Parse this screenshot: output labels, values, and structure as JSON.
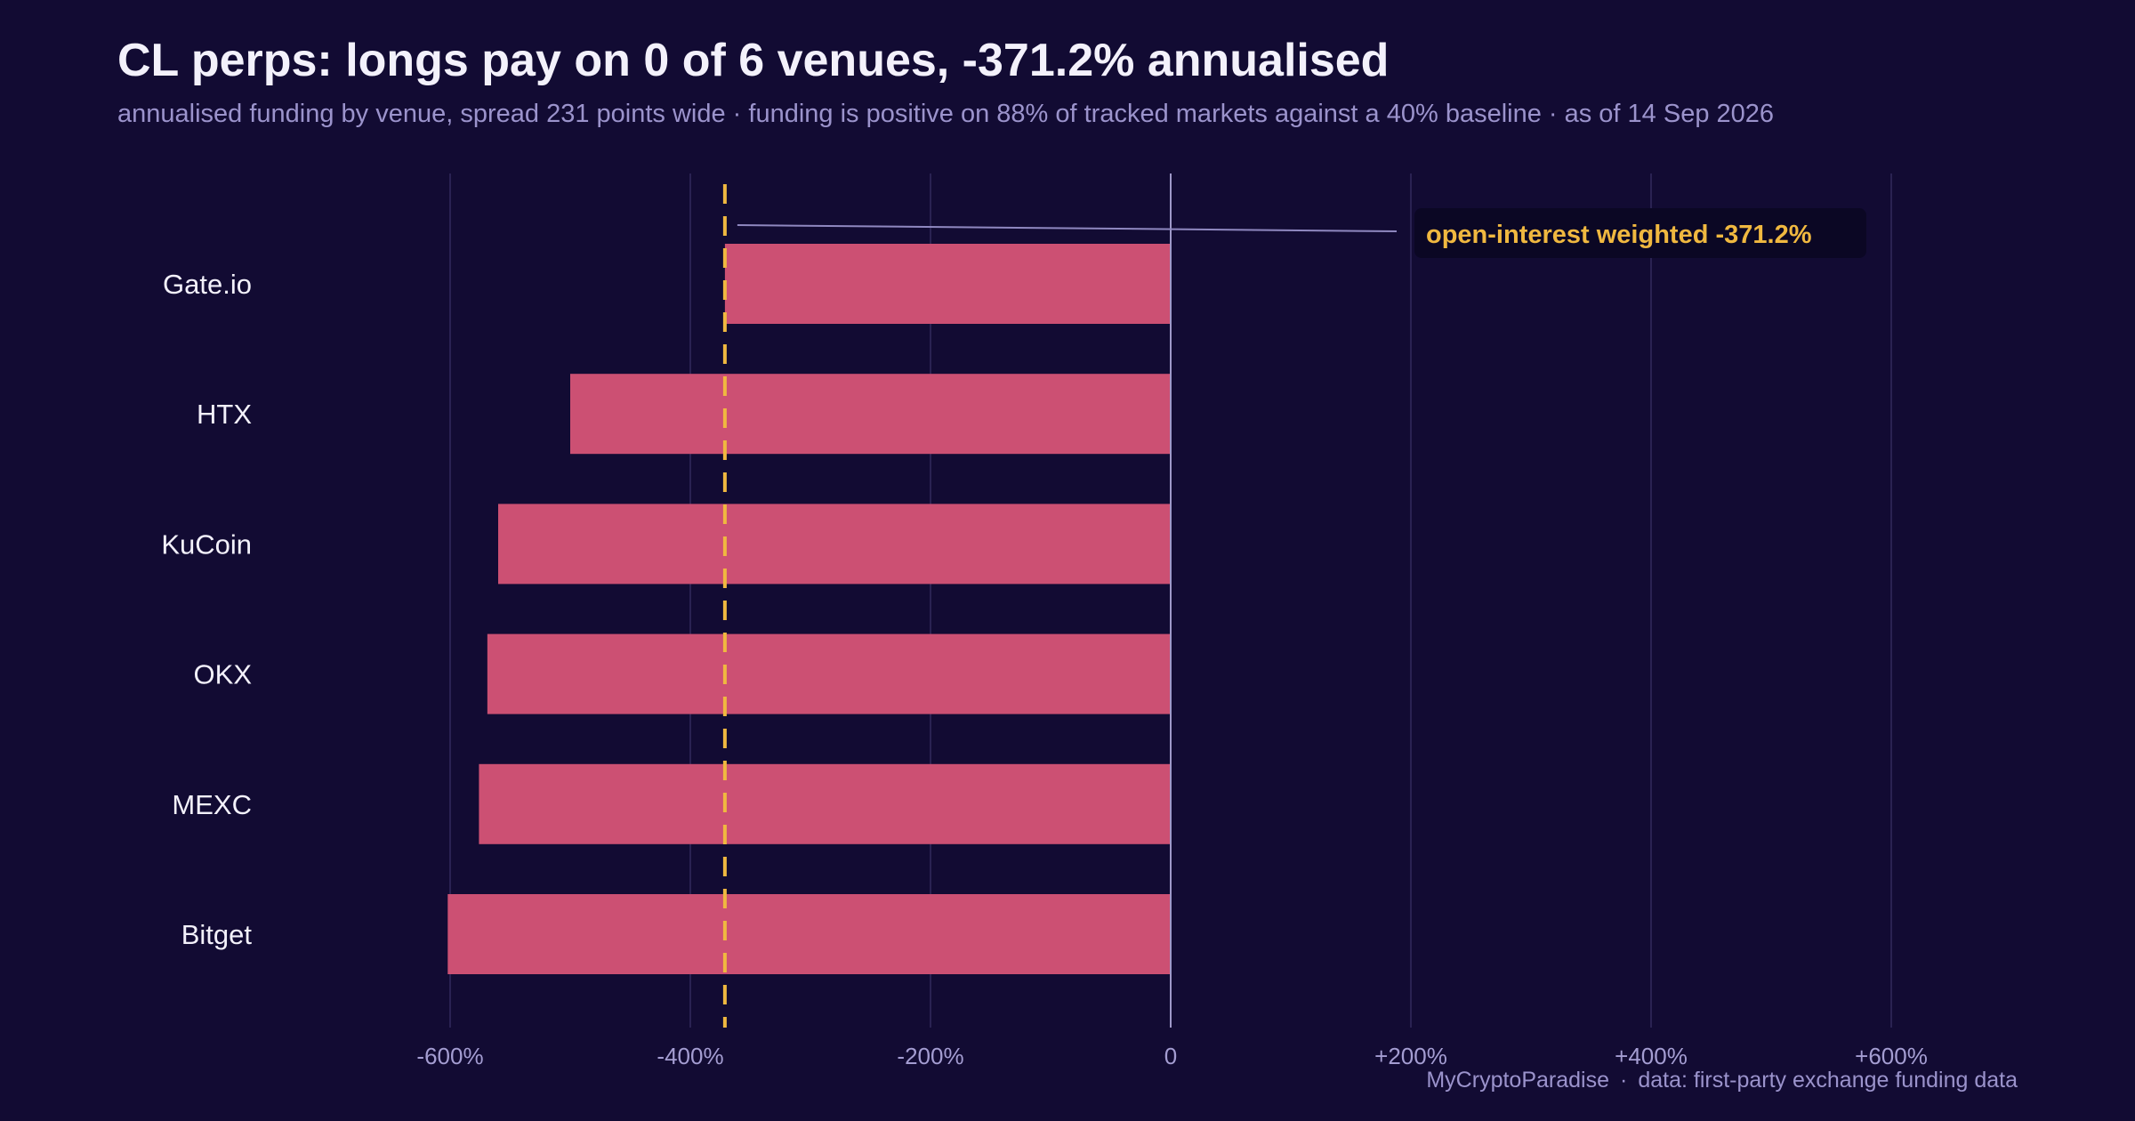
{
  "header": {
    "title": "CL perps: longs pay on 0 of 6 venues, -371.2% annualised",
    "subtitle": "annualised funding by venue, spread 231 points wide · funding is positive on 88% of tracked markets against a 40% baseline · as of 14 Sep 2026"
  },
  "footer": {
    "brand": "MyCryptoParadise",
    "separator": "·",
    "source": "data: first-party exchange funding data"
  },
  "colors": {
    "background": "#120b33",
    "bar_negative": "#cc5073",
    "reference_line": "#f0b840"
  },
  "chart_data": {
    "type": "bar",
    "orientation": "horizontal",
    "categories": [
      "Gate.io",
      "HTX",
      "KuCoin",
      "OKX",
      "MEXC",
      "Bitget"
    ],
    "values": [
      -371.2,
      -500,
      -560,
      -569,
      -576,
      -602
    ],
    "unit": "%",
    "xlim": [
      -600,
      600
    ],
    "xticks": [
      -600,
      -400,
      -200,
      0,
      200,
      400,
      600
    ],
    "xtick_labels": [
      "-600%",
      "-400%",
      "-200%",
      "0",
      "+200%",
      "+400%",
      "+600%"
    ],
    "grid": "vertical",
    "reference_line": {
      "value": -371.2,
      "label": "open-interest weighted",
      "value_label": "-371.2%"
    }
  }
}
